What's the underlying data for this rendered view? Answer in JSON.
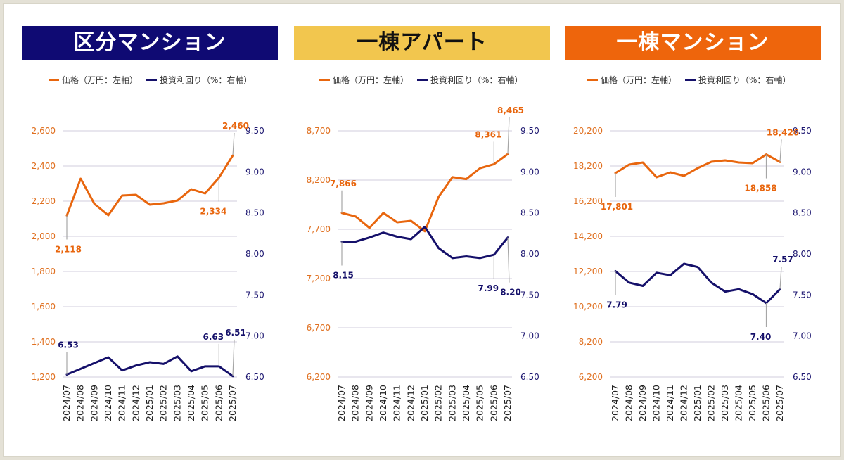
{
  "legend": {
    "price_label": "価格（万円：左軸）",
    "yield_label": "投資利回り（%：右軸）"
  },
  "colors": {
    "price": "#e8660e",
    "yield": "#15106a",
    "grid": "#d9d6e3",
    "leader": "#a6a6a6"
  },
  "chart_data": [
    {
      "type": "line",
      "title": "区分マンション",
      "title_bg": "#0f0a73",
      "title_color": "#ffffff",
      "categories": [
        "2024/07",
        "2024/08",
        "2024/09",
        "2024/10",
        "2024/11",
        "2024/12",
        "2025/01",
        "2025/02",
        "2025/03",
        "2025/04",
        "2025/05",
        "2025/06",
        "2025/07"
      ],
      "series": [
        {
          "name": "価格（万円：左軸）",
          "axis": "left",
          "values": [
            2118,
            2328,
            2184,
            2120,
            2232,
            2236,
            2180,
            2188,
            2204,
            2268,
            2244,
            2334,
            2460
          ]
        },
        {
          "name": "投資利回り（%：右軸）",
          "axis": "right",
          "values": [
            6.53,
            6.6,
            6.67,
            6.74,
            6.58,
            6.64,
            6.68,
            6.66,
            6.75,
            6.57,
            6.63,
            6.63,
            6.51
          ]
        }
      ],
      "left_axis": {
        "min": 1200,
        "max": 2600,
        "ticks": [
          "1,200",
          "1,400",
          "1,600",
          "1,800",
          "2,000",
          "2,200",
          "2,400",
          "2,600"
        ]
      },
      "right_axis": {
        "min": 6.5,
        "max": 9.5,
        "ticks": [
          "6.50",
          "7.00",
          "7.50",
          "8.00",
          "8.50",
          "9.00",
          "9.50"
        ]
      },
      "grid": true,
      "legend": "top",
      "annotations": [
        {
          "series": 0,
          "index": 0,
          "label": "2,118",
          "pos": "below"
        },
        {
          "series": 0,
          "index": 11,
          "label": "2,334",
          "pos": "below"
        },
        {
          "series": 0,
          "index": 12,
          "label": "2,460",
          "pos": "above"
        },
        {
          "series": 1,
          "index": 0,
          "label": "6.53",
          "pos": "above"
        },
        {
          "series": 1,
          "index": 11,
          "label": "6.63",
          "pos": "above"
        },
        {
          "series": 1,
          "index": 12,
          "label": "6.51",
          "pos": "above-high"
        }
      ]
    },
    {
      "type": "line",
      "title": "一棟アパート",
      "title_bg": "#f2c64e",
      "title_color": "#111111",
      "categories": [
        "2024/07",
        "2024/08",
        "2024/09",
        "2024/10",
        "2024/11",
        "2024/12",
        "2025/01",
        "2025/02",
        "2025/03",
        "2025/04",
        "2025/05",
        "2025/06",
        "2025/07"
      ],
      "series": [
        {
          "name": "価格（万円：左軸）",
          "axis": "left",
          "values": [
            7866,
            7830,
            7714,
            7866,
            7771,
            7786,
            7680,
            8030,
            8230,
            8210,
            8321,
            8361,
            8465
          ]
        },
        {
          "name": "投資利回り（%：右軸）",
          "axis": "right",
          "values": [
            8.15,
            8.15,
            8.2,
            8.26,
            8.21,
            8.18,
            8.33,
            8.07,
            7.95,
            7.97,
            7.95,
            7.99,
            8.2
          ]
        }
      ],
      "left_axis": {
        "min": 6200,
        "max": 8700,
        "ticks": [
          "6,200",
          "6,700",
          "7,200",
          "7,700",
          "8,200",
          "8,700"
        ]
      },
      "right_axis": {
        "min": 6.5,
        "max": 9.5,
        "ticks": [
          "6.50",
          "7.00",
          "7.50",
          "8.00",
          "8.50",
          "9.00",
          "9.50"
        ]
      },
      "grid": true,
      "legend": "top",
      "annotations": [
        {
          "series": 0,
          "index": 0,
          "label": "7,866",
          "pos": "above"
        },
        {
          "series": 0,
          "index": 11,
          "label": "8,361",
          "pos": "above"
        },
        {
          "series": 0,
          "index": 12,
          "label": "8,465",
          "pos": "above-high"
        },
        {
          "series": 1,
          "index": 0,
          "label": "8.15",
          "pos": "below"
        },
        {
          "series": 1,
          "index": 11,
          "label": "7.99",
          "pos": "below"
        },
        {
          "series": 1,
          "index": 12,
          "label": "8.20",
          "pos": "below-far"
        }
      ]
    },
    {
      "type": "line",
      "title": "一棟マンション",
      "title_bg": "#ee650c",
      "title_color": "#ffffff",
      "categories": [
        "2024/07",
        "2024/08",
        "2024/09",
        "2024/10",
        "2024/11",
        "2024/12",
        "2025/01",
        "2025/02",
        "2025/03",
        "2025/04",
        "2025/05",
        "2025/06",
        "2025/07"
      ],
      "series": [
        {
          "name": "価格（万円：左軸）",
          "axis": "left",
          "values": [
            17801,
            18280,
            18400,
            17560,
            17840,
            17640,
            18080,
            18440,
            18520,
            18400,
            18360,
            18858,
            18426
          ]
        },
        {
          "name": "投資利回り（%：右軸）",
          "axis": "right",
          "values": [
            7.79,
            7.65,
            7.61,
            7.77,
            7.74,
            7.88,
            7.84,
            7.65,
            7.54,
            7.57,
            7.51,
            7.4,
            7.57
          ]
        }
      ],
      "left_axis": {
        "min": 6200,
        "max": 20200,
        "ticks": [
          "6,200",
          "8,200",
          "10,200",
          "12,200",
          "14,200",
          "16,200",
          "18,200",
          "20,200"
        ]
      },
      "right_axis": {
        "min": 6.5,
        "max": 9.5,
        "ticks": [
          "6.50",
          "7.00",
          "7.50",
          "8.00",
          "8.50",
          "9.00",
          "9.50"
        ]
      },
      "grid": true,
      "legend": "top",
      "annotations": [
        {
          "series": 0,
          "index": 0,
          "label": "17,801",
          "pos": "below"
        },
        {
          "series": 0,
          "index": 11,
          "label": "18,858",
          "pos": "below"
        },
        {
          "series": 0,
          "index": 12,
          "label": "18,426",
          "pos": "above"
        },
        {
          "series": 1,
          "index": 0,
          "label": "7.79",
          "pos": "below"
        },
        {
          "series": 1,
          "index": 11,
          "label": "7.40",
          "pos": "below"
        },
        {
          "series": 1,
          "index": 12,
          "label": "7.57",
          "pos": "above"
        }
      ]
    }
  ]
}
